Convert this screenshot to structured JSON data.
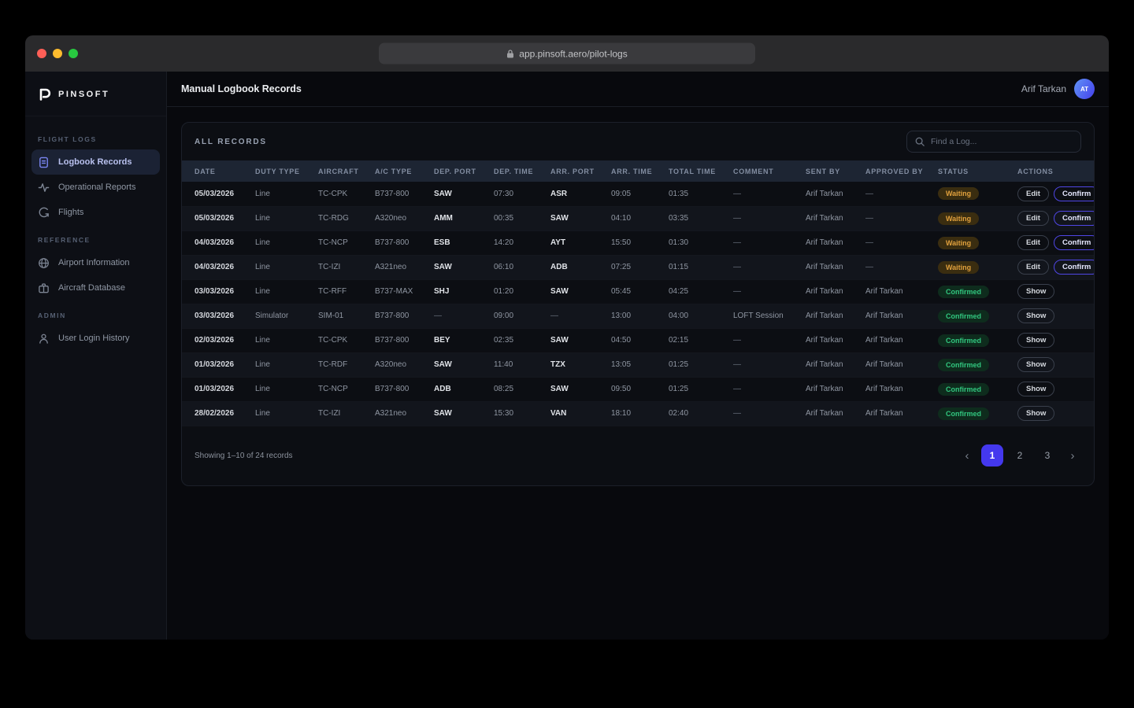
{
  "browser": {
    "url": "app.pinsoft.aero/pilot-logs"
  },
  "sidebar": {
    "logo_text": "PINSOFT",
    "sections": [
      {
        "label": "FLIGHT LOGS",
        "items": [
          {
            "label": "Logbook Records",
            "icon": "document-icon",
            "active": true
          },
          {
            "label": "Operational Reports",
            "icon": "activity-icon",
            "active": false
          },
          {
            "label": "Flights",
            "icon": "route-icon",
            "active": false
          }
        ]
      },
      {
        "label": "REFERENCE",
        "items": [
          {
            "label": "Airport Information",
            "icon": "globe-icon",
            "active": false
          },
          {
            "label": "Aircraft Database",
            "icon": "briefcase-icon",
            "active": false
          }
        ]
      },
      {
        "label": "ADMIN",
        "items": [
          {
            "label": "User Login History",
            "icon": "user-icon",
            "active": false
          }
        ]
      }
    ]
  },
  "header": {
    "title": "Manual Logbook Records",
    "user_name": "Arif Tarkan",
    "avatar_initials": "AT"
  },
  "records": {
    "card_title": "ALL RECORDS",
    "search_placeholder": "Find a Log...",
    "columns": [
      "DATE",
      "DUTY TYPE",
      "AIRCRAFT",
      "A/C TYPE",
      "DEP. PORT",
      "DEP. TIME",
      "ARR. PORT",
      "ARR. TIME",
      "TOTAL TIME",
      "COMMENT",
      "SENT BY",
      "APPROVED BY",
      "STATUS",
      "ACTIONS"
    ],
    "rows": [
      {
        "date": "05/03/2026",
        "duty_type": "Line",
        "aircraft": "TC-CPK",
        "ac_type": "B737-800",
        "dep_port": "SAW",
        "dep_time": "07:30",
        "arr_port": "ASR",
        "arr_time": "09:05",
        "total_time": "01:35",
        "comment": "—",
        "sent_by": "Arif Tarkan",
        "approved_by": "—",
        "status": "Waiting",
        "actions": [
          "Edit",
          "Confirm"
        ]
      },
      {
        "date": "05/03/2026",
        "duty_type": "Line",
        "aircraft": "TC-RDG",
        "ac_type": "A320neo",
        "dep_port": "AMM",
        "dep_time": "00:35",
        "arr_port": "SAW",
        "arr_time": "04:10",
        "total_time": "03:35",
        "comment": "—",
        "sent_by": "Arif Tarkan",
        "approved_by": "—",
        "status": "Waiting",
        "actions": [
          "Edit",
          "Confirm"
        ]
      },
      {
        "date": "04/03/2026",
        "duty_type": "Line",
        "aircraft": "TC-NCP",
        "ac_type": "B737-800",
        "dep_port": "ESB",
        "dep_time": "14:20",
        "arr_port": "AYT",
        "arr_time": "15:50",
        "total_time": "01:30",
        "comment": "—",
        "sent_by": "Arif Tarkan",
        "approved_by": "—",
        "status": "Waiting",
        "actions": [
          "Edit",
          "Confirm"
        ]
      },
      {
        "date": "04/03/2026",
        "duty_type": "Line",
        "aircraft": "TC-IZI",
        "ac_type": "A321neo",
        "dep_port": "SAW",
        "dep_time": "06:10",
        "arr_port": "ADB",
        "arr_time": "07:25",
        "total_time": "01:15",
        "comment": "—",
        "sent_by": "Arif Tarkan",
        "approved_by": "—",
        "status": "Waiting",
        "actions": [
          "Edit",
          "Confirm"
        ]
      },
      {
        "date": "03/03/2026",
        "duty_type": "Line",
        "aircraft": "TC-RFF",
        "ac_type": "B737-MAX",
        "dep_port": "SHJ",
        "dep_time": "01:20",
        "arr_port": "SAW",
        "arr_time": "05:45",
        "total_time": "04:25",
        "comment": "—",
        "sent_by": "Arif Tarkan",
        "approved_by": "Arif Tarkan",
        "status": "Confirmed",
        "actions": [
          "Show"
        ]
      },
      {
        "date": "03/03/2026",
        "duty_type": "Simulator",
        "aircraft": "SIM-01",
        "ac_type": "B737-800",
        "dep_port": "—",
        "dep_time": "09:00",
        "arr_port": "—",
        "arr_time": "13:00",
        "total_time": "04:00",
        "comment": "LOFT Session",
        "sent_by": "Arif Tarkan",
        "approved_by": "Arif Tarkan",
        "status": "Confirmed",
        "actions": [
          "Show"
        ]
      },
      {
        "date": "02/03/2026",
        "duty_type": "Line",
        "aircraft": "TC-CPK",
        "ac_type": "B737-800",
        "dep_port": "BEY",
        "dep_time": "02:35",
        "arr_port": "SAW",
        "arr_time": "04:50",
        "total_time": "02:15",
        "comment": "—",
        "sent_by": "Arif Tarkan",
        "approved_by": "Arif Tarkan",
        "status": "Confirmed",
        "actions": [
          "Show"
        ]
      },
      {
        "date": "01/03/2026",
        "duty_type": "Line",
        "aircraft": "TC-RDF",
        "ac_type": "A320neo",
        "dep_port": "SAW",
        "dep_time": "11:40",
        "arr_port": "TZX",
        "arr_time": "13:05",
        "total_time": "01:25",
        "comment": "—",
        "sent_by": "Arif Tarkan",
        "approved_by": "Arif Tarkan",
        "status": "Confirmed",
        "actions": [
          "Show"
        ]
      },
      {
        "date": "01/03/2026",
        "duty_type": "Line",
        "aircraft": "TC-NCP",
        "ac_type": "B737-800",
        "dep_port": "ADB",
        "dep_time": "08:25",
        "arr_port": "SAW",
        "arr_time": "09:50",
        "total_time": "01:25",
        "comment": "—",
        "sent_by": "Arif Tarkan",
        "approved_by": "Arif Tarkan",
        "status": "Confirmed",
        "actions": [
          "Show"
        ]
      },
      {
        "date": "28/02/2026",
        "duty_type": "Line",
        "aircraft": "TC-IZI",
        "ac_type": "A321neo",
        "dep_port": "SAW",
        "dep_time": "15:30",
        "arr_port": "VAN",
        "arr_time": "18:10",
        "total_time": "02:40",
        "comment": "—",
        "sent_by": "Arif Tarkan",
        "approved_by": "Arif Tarkan",
        "status": "Confirmed",
        "actions": [
          "Show"
        ]
      }
    ],
    "footer": {
      "summary": "Showing 1–10 of 24 records",
      "pages": [
        "1",
        "2",
        "3"
      ],
      "active_page": "1",
      "prev_label": "‹",
      "next_label": "›"
    }
  },
  "colors": {
    "accent_indigo": "#4f46e5",
    "active_page_bg": "#4438ee",
    "waiting_text": "#e2a13d",
    "waiting_bg": "#3a2d10",
    "confirmed_text": "#31c77f",
    "confirmed_bg": "#0e2c1d",
    "traffic_red": "#ff5f57",
    "traffic_yellow": "#febc2e",
    "traffic_green": "#28c840"
  }
}
